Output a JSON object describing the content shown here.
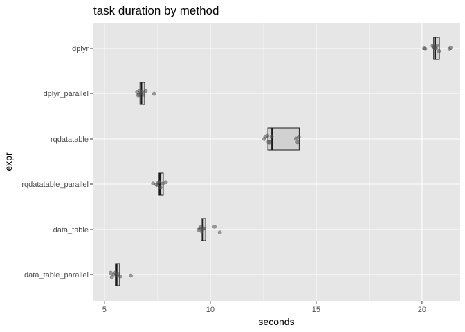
{
  "chart_data": {
    "type": "boxplot",
    "title": "task duration by method",
    "xlabel": "seconds",
    "ylabel": "expr",
    "xlim": [
      4.45,
      21.8
    ],
    "x_ticks": [
      5,
      10,
      15,
      20
    ],
    "grid": true,
    "legend": "none",
    "categories": [
      "dplyr",
      "dplyr_parallel",
      "rqdatatable",
      "rqdatatable_parallel",
      "data_table",
      "data_table_parallel"
    ],
    "boxes": [
      {
        "category": "dplyr",
        "min": 20.5,
        "q1": 20.55,
        "median": 20.62,
        "q3": 20.82,
        "max": 20.82
      },
      {
        "category": "dplyr_parallel",
        "min": 6.65,
        "q1": 6.68,
        "median": 6.75,
        "q3": 6.9,
        "max": 6.9
      },
      {
        "category": "rqdatatable",
        "min": 12.7,
        "q1": 12.72,
        "median": 12.92,
        "q3": 14.2,
        "max": 14.2
      },
      {
        "category": "rqdatatable_parallel",
        "min": 7.55,
        "q1": 7.58,
        "median": 7.62,
        "q3": 7.78,
        "max": 7.78
      },
      {
        "category": "data_table",
        "min": 9.55,
        "q1": 9.58,
        "median": 9.65,
        "q3": 9.78,
        "max": 9.78
      },
      {
        "category": "data_table_parallel",
        "min": 5.5,
        "q1": 5.52,
        "median": 5.58,
        "q3": 5.72,
        "max": 5.72
      }
    ],
    "points": [
      {
        "category": "dplyr",
        "values": [
          20.1,
          20.15,
          20.5,
          20.55,
          20.6,
          20.65,
          20.7,
          20.8,
          21.3,
          21.35
        ]
      },
      {
        "category": "dplyr_parallel",
        "values": [
          6.55,
          6.6,
          6.62,
          6.68,
          6.72,
          6.78,
          6.85,
          6.95,
          7.35
        ]
      },
      {
        "category": "rqdatatable",
        "values": [
          12.55,
          12.6,
          12.7,
          12.75,
          12.8,
          12.9,
          14.05,
          14.12,
          14.18
        ]
      },
      {
        "category": "rqdatatable_parallel",
        "values": [
          7.3,
          7.45,
          7.5,
          7.55,
          7.6,
          7.65,
          7.75,
          7.9
        ]
      },
      {
        "category": "data_table",
        "values": [
          9.45,
          9.5,
          9.55,
          9.6,
          9.65,
          9.7,
          10.2,
          10.45
        ]
      },
      {
        "category": "data_table_parallel",
        "values": [
          5.3,
          5.35,
          5.45,
          5.52,
          5.58,
          5.65,
          5.75,
          6.25
        ]
      }
    ]
  },
  "colors": {
    "panel_background": "#e6e6e6",
    "grid_major": "#ffffff",
    "box_fill": "#d1d1d1",
    "box_outline": "#1a1a1a",
    "point": "#555555",
    "tick_text": "#4d4d4d",
    "text": "#000000"
  }
}
